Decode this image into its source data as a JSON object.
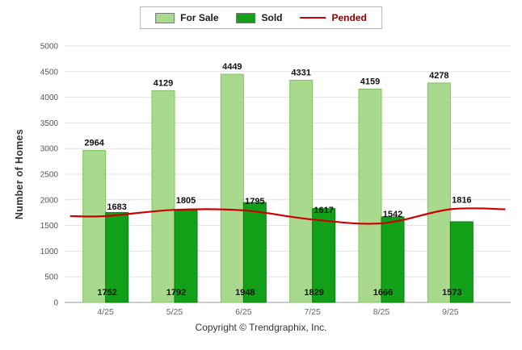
{
  "footer": {
    "text": "Copyright © Trendgraphix, Inc."
  },
  "chart_data": {
    "type": "bar",
    "subtype": "grouped-bars-with-line-overlay",
    "categories": [
      "4/25",
      "5/25",
      "6/25",
      "7/25",
      "8/25",
      "9/25"
    ],
    "series": [
      {
        "name": "For Sale",
        "type": "bar",
        "color": "#a9d98c",
        "stroke": "#82c165",
        "label_color": "#1a1a1a",
        "values": [
          2964,
          4129,
          4449,
          4331,
          4159,
          4278
        ]
      },
      {
        "name": "Sold",
        "type": "bar",
        "color": "#12a018",
        "stroke": "#0a7d10",
        "label_color": "#1a1a1a",
        "values": [
          1752,
          1792,
          1948,
          1829,
          1666,
          1573
        ]
      },
      {
        "name": "Pended",
        "type": "line",
        "color": "#cc0000",
        "label_color": "#8b0000",
        "values": [
          1683,
          1805,
          1795,
          1617,
          1542,
          1816
        ]
      }
    ],
    "xlabel": "",
    "ylabel": "Number of Homes",
    "ylim": [
      0,
      5000
    ],
    "ytick_step": 500,
    "grid": true,
    "legend_position": "top-center",
    "axis_text_color": "#555",
    "xtick_text_color": "#666",
    "value_label_color": "#111"
  }
}
